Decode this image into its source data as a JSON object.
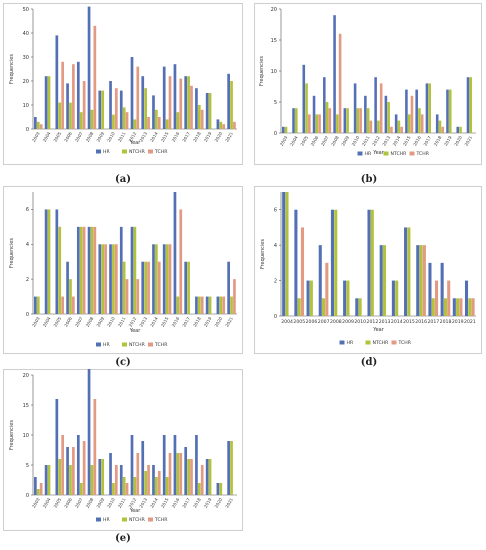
{
  "chart_data": [
    {
      "type": "bar",
      "panel": "(a)",
      "xlabel": "Year",
      "ylabel": "Frequencies",
      "ylim": [
        0,
        50
      ],
      "yticks": [
        0,
        10,
        20,
        30,
        40,
        50
      ],
      "colors": [
        "#5470b5",
        "#b2c23b",
        "#e39a82"
      ],
      "categories": [
        "2003",
        "2004",
        "2005",
        "2006",
        "2007",
        "2008",
        "2009",
        "2010",
        "2011",
        "2012",
        "2013",
        "2014",
        "2015",
        "2016",
        "2017",
        "2018",
        "2019",
        "2020",
        "2021"
      ],
      "series": [
        {
          "name": "HR",
          "values": [
            5,
            22,
            39,
            19,
            28,
            51,
            16,
            20,
            16,
            30,
            22,
            14,
            26,
            27,
            22,
            17,
            15,
            4,
            23
          ]
        },
        {
          "name": "NTCHR",
          "values": [
            3,
            22,
            11,
            11,
            7,
            8,
            16,
            6,
            9,
            4,
            17,
            8,
            4,
            7,
            22,
            10,
            15,
            3,
            20
          ]
        },
        {
          "name": "TCHR",
          "values": [
            2,
            0,
            28,
            27,
            20,
            43,
            0,
            17,
            7,
            26,
            5,
            5,
            22,
            21,
            18,
            8,
            0,
            2,
            3
          ]
        }
      ],
      "legend_position": "bottom"
    },
    {
      "type": "bar",
      "panel": "(b)",
      "xlabel": "Year",
      "ylabel": "Frequencies",
      "ylim": [
        0,
        20
      ],
      "yticks": [
        0,
        5,
        10,
        15,
        20
      ],
      "colors": [
        "#5470b5",
        "#b2c23b",
        "#e39a82"
      ],
      "categories": [
        "2003",
        "2004",
        "2005",
        "2006",
        "2007",
        "2008",
        "2009",
        "2010",
        "2011",
        "2012",
        "2013",
        "2014",
        "2015",
        "2016",
        "2017",
        "2018",
        "2019",
        "2020",
        "2021"
      ],
      "series": [
        {
          "name": "HR",
          "values": [
            1,
            4,
            11,
            6,
            9,
            19,
            4,
            8,
            6,
            9,
            6,
            3,
            7,
            7,
            8,
            3,
            7,
            1,
            9
          ]
        },
        {
          "name": "NTCHR",
          "values": [
            1,
            4,
            8,
            3,
            5,
            3,
            4,
            4,
            4,
            2,
            5,
            2,
            3,
            4,
            8,
            2,
            7,
            1,
            9
          ]
        },
        {
          "name": "TCHR",
          "values": [
            0,
            0,
            3,
            3,
            4,
            16,
            0,
            4,
            2,
            8,
            1,
            1,
            6,
            3,
            0,
            1,
            0,
            0,
            0
          ]
        }
      ],
      "legend_position": "bottom"
    },
    {
      "type": "bar",
      "panel": "(c)",
      "xlabel": "Year",
      "ylabel": "Frequencies",
      "ylim": [
        0,
        7
      ],
      "yticks": [
        0,
        2,
        4,
        6
      ],
      "colors": [
        "#5470b5",
        "#b2c23b",
        "#e39a82"
      ],
      "categories": [
        "2003",
        "2004",
        "2005",
        "2006",
        "2007",
        "2008",
        "2009",
        "2010",
        "2011",
        "2012",
        "2013",
        "2014",
        "2015",
        "2016",
        "2017",
        "2018",
        "2019",
        "2020",
        "2021"
      ],
      "series": [
        {
          "name": "HR",
          "values": [
            1,
            6,
            6,
            3,
            5,
            5,
            4,
            4,
            5,
            5,
            3,
            4,
            4,
            7,
            3,
            1,
            1,
            1,
            3
          ]
        },
        {
          "name": "NTCHR",
          "values": [
            1,
            6,
            5,
            2,
            5,
            5,
            4,
            4,
            3,
            5,
            3,
            4,
            4,
            1,
            3,
            1,
            1,
            1,
            1
          ]
        },
        {
          "name": "TCHR",
          "values": [
            0,
            0,
            1,
            1,
            5,
            5,
            4,
            4,
            2,
            2,
            3,
            3,
            4,
            6,
            0,
            1,
            0,
            1,
            2
          ]
        }
      ],
      "legend_position": "bottom"
    },
    {
      "type": "bar",
      "panel": "(d)",
      "xlabel": "Year",
      "ylabel": "Frequencies",
      "ylim": [
        0,
        7
      ],
      "yticks": [
        0,
        2,
        4,
        6
      ],
      "colors": [
        "#5470b5",
        "#b2c23b",
        "#e39a82"
      ],
      "categories": [
        "2004",
        "2005",
        "2006",
        "2007",
        "2008",
        "2009",
        "2010",
        "2012",
        "2013",
        "2014",
        "2015",
        "2016",
        "2017",
        "2018",
        "2019",
        "2021"
      ],
      "series": [
        {
          "name": "HR",
          "values": [
            7,
            6,
            2,
            4,
            6,
            2,
            1,
            6,
            4,
            2,
            5,
            4,
            3,
            3,
            1,
            2
          ]
        },
        {
          "name": "NTCHR",
          "values": [
            7,
            1,
            2,
            1,
            6,
            2,
            1,
            6,
            4,
            2,
            5,
            4,
            1,
            1,
            1,
            1
          ]
        },
        {
          "name": "TCHR",
          "values": [
            0,
            5,
            0,
            3,
            0,
            0,
            0,
            0,
            0,
            0,
            0,
            4,
            2,
            2,
            1,
            1
          ]
        }
      ],
      "legend_position": "bottom"
    },
    {
      "type": "bar",
      "panel": "(e)",
      "xlabel": "Year",
      "ylabel": "Frequencies",
      "ylim": [
        0,
        20
      ],
      "yticks": [
        0,
        5,
        10,
        15,
        20
      ],
      "colors": [
        "#5470b5",
        "#b2c23b",
        "#e39a82"
      ],
      "categories": [
        "2003",
        "2004",
        "2005",
        "2006",
        "2007",
        "2008",
        "2009",
        "2010",
        "2011",
        "2012",
        "2013",
        "2014",
        "2015",
        "2016",
        "2017",
        "2018",
        "2019",
        "2020",
        "2021"
      ],
      "series": [
        {
          "name": "HR",
          "values": [
            3,
            5,
            16,
            8,
            10,
            21,
            6,
            7,
            5,
            10,
            9,
            5,
            10,
            10,
            8,
            10,
            6,
            2,
            9
          ]
        },
        {
          "name": "NTCHR",
          "values": [
            1,
            5,
            6,
            5,
            2,
            5,
            6,
            2,
            3,
            3,
            4,
            3,
            3,
            7,
            6,
            2,
            6,
            2,
            9
          ]
        },
        {
          "name": "TCHR",
          "values": [
            2,
            0,
            10,
            8,
            9,
            16,
            0,
            5,
            2,
            7,
            5,
            4,
            7,
            7,
            6,
            5,
            0,
            0,
            0
          ]
        }
      ],
      "legend_position": "bottom"
    }
  ]
}
